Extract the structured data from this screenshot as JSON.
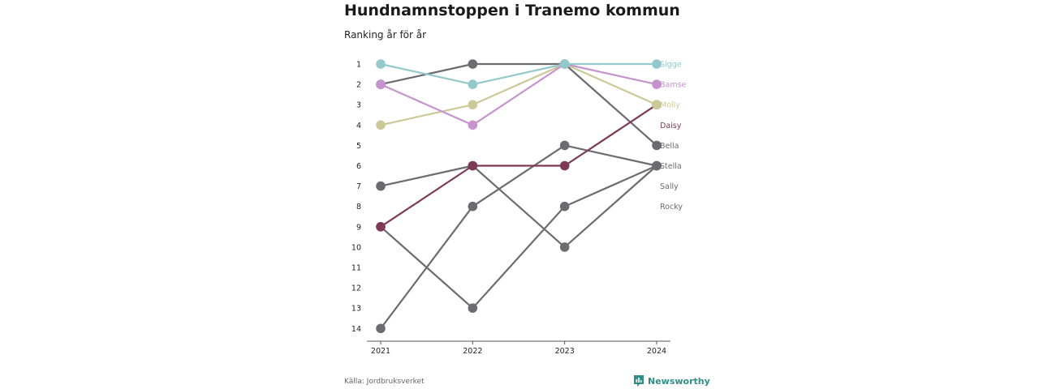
{
  "header": {
    "title": "Hundnamnstoppen i Tranemo kommun",
    "subtitle": "Ranking år för år"
  },
  "footer": {
    "source": "Källa: Jordbruksverket",
    "brand": "Newsworthy"
  },
  "colors": {
    "Sigge": "#94c9cc",
    "Bamse": "#c793cf",
    "Molly": "#cbc996",
    "Daisy": "#7d3a52",
    "grey": "#6b6b70",
    "brand": "#2f8f88",
    "axis": "#555555"
  },
  "chart_data": {
    "type": "line",
    "title": "Hundnamnstoppen i Tranemo kommun",
    "subtitle": "Ranking år för år",
    "x": [
      "2021",
      "2022",
      "2023",
      "2024"
    ],
    "y_ticks": [
      "1",
      "2",
      "3",
      "4",
      "5",
      "6",
      "7",
      "8",
      "9",
      "10",
      "11",
      "12",
      "13",
      "14"
    ],
    "ylim": [
      1,
      14
    ],
    "y_inverted": true,
    "grid": false,
    "legend": "direct-labels-right",
    "series": [
      {
        "name": "Sigge",
        "values": [
          1,
          2,
          1,
          1
        ],
        "color": "#94c9cc",
        "highlight": true
      },
      {
        "name": "Bamse",
        "values": [
          2,
          4,
          1,
          2
        ],
        "color": "#c793cf",
        "highlight": true
      },
      {
        "name": "Molly",
        "values": [
          4,
          3,
          1,
          3
        ],
        "color": "#cbc996",
        "highlight": true
      },
      {
        "name": "Daisy",
        "values": [
          9,
          6,
          6,
          3
        ],
        "color": "#7d3a52",
        "highlight": true
      },
      {
        "name": "Bella",
        "values": [
          2,
          1,
          1,
          5
        ],
        "color": "#6b6b70",
        "highlight": false
      },
      {
        "name": "Stella",
        "values": [
          7,
          6,
          10,
          6
        ],
        "color": "#6b6b70",
        "highlight": false
      },
      {
        "name": "Sally",
        "values": [
          14,
          8,
          5,
          6
        ],
        "color": "#6b6b70",
        "highlight": false
      },
      {
        "name": "Rocky",
        "values": [
          9,
          13,
          8,
          6
        ],
        "color": "#6b6b70",
        "highlight": false
      }
    ]
  }
}
